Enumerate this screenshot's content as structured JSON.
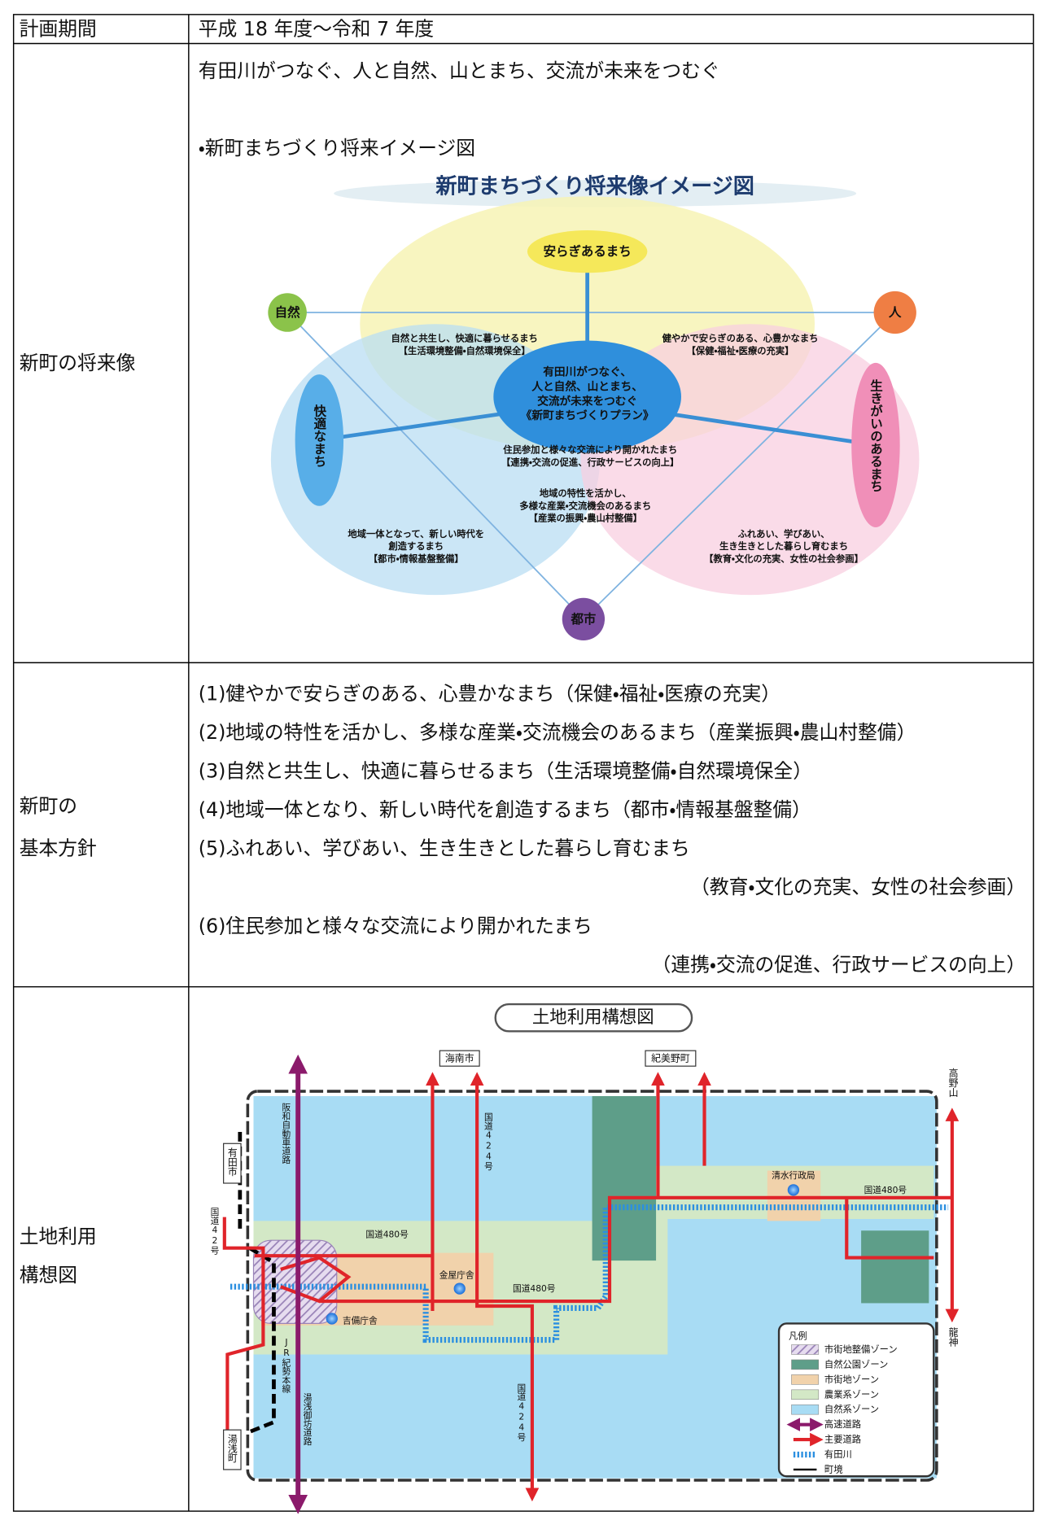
{
  "table": {
    "rows": [
      {
        "label": [
          "計画期間"
        ],
        "text": "平成 18 年度～令和 7 年度"
      },
      {
        "label": [
          "新町の将来像"
        ],
        "text": "有田川がつなぐ、人と自然、山とまち、交流が未来をつむぐ",
        "caption": "・新町まちづくり将来イメージ図"
      },
      {
        "label": [
          "新町の",
          "基本方針"
        ],
        "items": [
          {
            "text": "(1)健やかで安らぎのある、心豊かなまち（保健・福祉・医療の充実）"
          },
          {
            "text": "(2)地域の特性を活かし、多様な産業・交流機会のあるまち（産業振興・農山村整備）"
          },
          {
            "text": "(3)自然と共生し、快適に暮らせるまち（生活環境整備・自然環境保全）"
          },
          {
            "text": "(4)地域一体となり、新しい時代を創造するまち（都市・情報基盤整備）"
          },
          {
            "text": "(5)ふれあい、学びあい、生き生きとした暮らし育むまち",
            "note": "（教育・文化の充実、女性の社会参画）"
          },
          {
            "text": "(6)住民参加と様々な交流により開かれたまち",
            "note": "（連携・交流の促進、行政サービスの向上）"
          }
        ]
      },
      {
        "label": [
          "土地利用",
          "構想図"
        ]
      }
    ]
  },
  "vision_figure": {
    "title": "新町まちづくり将来像イメージ図",
    "nodes": [
      "安らぎあるまち",
      "自然",
      "人",
      "快適なまち",
      "生きがいのあるまち",
      "都市"
    ],
    "center": [
      "有田川がつなぐ、",
      "人と自然、山とまち、",
      "交流が未来をつむぐ",
      "《新町まちづくりプラン》"
    ],
    "areas": [
      [
        "自然と共生し、快適に暮らせるまち",
        "【生活環境整備・自然環境保全】"
      ],
      [
        "健やかで安らぎのある、心豊かなまち",
        "【保健・福祉・医療の充実】"
      ],
      [
        "住民参加と様々な交流により開かれたまち",
        "【連携・交流の促進、行政サービスの向上】"
      ],
      [
        "地域の特性を活かし、",
        "多様な産業・交流機会のあるまち",
        "【産業の振興・農山村整備】"
      ],
      [
        "地域一体となって、新しい時代を",
        "創造するまち",
        "【都市・情報基盤整備】"
      ],
      [
        "ふれあい、学びあい、",
        "生き生きとした暮らし育むまち",
        "【教育・文化の充実、女性の社会参画】"
      ]
    ]
  },
  "land_use_figure": {
    "title": "土地利用構想図",
    "places": [
      "海南市",
      "紀美野町",
      "高野山",
      "有田市",
      "湯浅町",
      "龍神"
    ],
    "roads": [
      "国道42号",
      "阪和自動車道路",
      "国道424号",
      "国道480号",
      "国道480号",
      "国道480号",
      "JR紀勢本線",
      "湯浅御坊道路",
      "国道424号"
    ],
    "facilities": [
      "清水行政局",
      "金屋庁舎",
      "吉備庁舎"
    ],
    "legend": {
      "title": "凡例",
      "items": [
        "市街地整備ゾーン",
        "自然公園ゾーン",
        "市街地ゾーン",
        "農業系ゾーン",
        "自然系ゾーン",
        "高速道路",
        "主要道路",
        "有田川",
        "町境"
      ]
    }
  }
}
